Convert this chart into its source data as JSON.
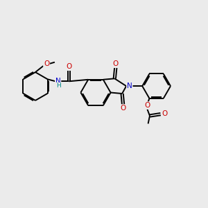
{
  "bg_color": "#ebebeb",
  "bond_color": "#000000",
  "nitrogen_color": "#0000cc",
  "oxygen_color": "#cc0000",
  "hydrogen_color": "#008888",
  "line_width": 1.4,
  "figsize": [
    3.0,
    3.0
  ],
  "dpi": 100,
  "xlim": [
    0,
    10
  ],
  "ylim": [
    0,
    10
  ]
}
